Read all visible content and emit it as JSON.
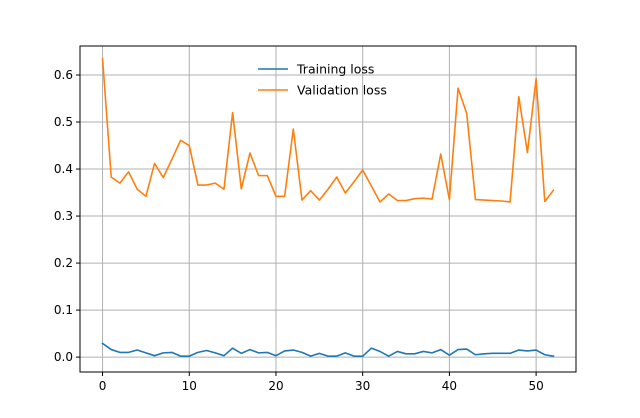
{
  "chart_data": {
    "type": "line",
    "title": "",
    "xlabel": "",
    "ylabel": "",
    "xlim": [
      -2.6,
      54.6
    ],
    "ylim": [
      -0.0317,
      0.6617
    ],
    "grid": true,
    "legend_position": "upper-center",
    "x_ticks": [
      0,
      10,
      20,
      30,
      40,
      50
    ],
    "x_tick_labels": [
      "0",
      "10",
      "20",
      "30",
      "40",
      "50"
    ],
    "y_ticks": [
      0.0,
      0.1,
      0.2,
      0.3,
      0.4,
      0.5,
      0.6
    ],
    "y_tick_labels": [
      "0.0",
      "0.1",
      "0.2",
      "0.3",
      "0.4",
      "0.5",
      "0.6"
    ],
    "x": [
      0,
      1,
      2,
      3,
      4,
      5,
      6,
      7,
      8,
      9,
      10,
      11,
      12,
      13,
      14,
      15,
      16,
      17,
      18,
      19,
      20,
      21,
      22,
      23,
      24,
      25,
      26,
      27,
      28,
      29,
      30,
      31,
      32,
      33,
      34,
      35,
      36,
      37,
      38,
      39,
      40,
      41,
      42,
      43,
      44,
      45,
      46,
      47,
      48,
      49,
      50,
      51,
      52
    ],
    "series": [
      {
        "name": "Training loss",
        "color": "#1f77b4",
        "values": [
          0.029,
          0.016,
          0.01,
          0.01,
          0.015,
          0.009,
          0.003,
          0.009,
          0.01,
          0.002,
          0.002,
          0.01,
          0.014,
          0.009,
          0.003,
          0.019,
          0.008,
          0.016,
          0.009,
          0.01,
          0.003,
          0.013,
          0.015,
          0.01,
          0.002,
          0.008,
          0.002,
          0.002,
          0.009,
          0.002,
          0.002,
          0.019,
          0.012,
          0.002,
          0.012,
          0.007,
          0.007,
          0.012,
          0.009,
          0.016,
          0.004,
          0.016,
          0.017,
          0.005,
          0.007,
          0.008,
          0.008,
          0.008,
          0.015,
          0.013,
          0.015,
          0.005,
          0.002
        ]
      },
      {
        "name": "Validation loss",
        "color": "#ff7f0e",
        "values": [
          0.635,
          0.383,
          0.37,
          0.394,
          0.357,
          0.342,
          0.412,
          0.382,
          0.421,
          0.461,
          0.45,
          0.366,
          0.366,
          0.37,
          0.357,
          0.52,
          0.358,
          0.434,
          0.386,
          0.386,
          0.342,
          0.342,
          0.485,
          0.334,
          0.354,
          0.334,
          0.357,
          0.383,
          0.349,
          0.373,
          0.398,
          0.364,
          0.33,
          0.347,
          0.333,
          0.333,
          0.337,
          0.338,
          0.336,
          0.432,
          0.335,
          0.572,
          0.518,
          0.335,
          0.334,
          0.333,
          0.332,
          0.33,
          0.554,
          0.435,
          0.592,
          0.331,
          0.355
        ]
      }
    ]
  }
}
